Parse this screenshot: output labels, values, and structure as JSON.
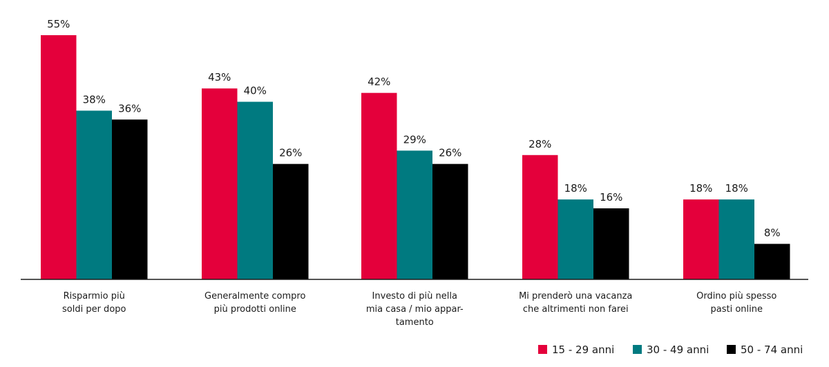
{
  "chart_data": {
    "type": "bar",
    "categories": [
      [
        "Risparmio più",
        "soldi per dopo"
      ],
      [
        "Generalmente compro",
        "più prodotti online"
      ],
      [
        "Investo di più nella",
        "mia casa / mio appar-",
        "tamento"
      ],
      [
        "Mi prenderò una vacanza",
        "che altrimenti non farei"
      ],
      [
        "Ordino più spesso",
        "pasti online"
      ]
    ],
    "series": [
      {
        "name": "15 - 29 anni",
        "color": "#e4003b",
        "values": [
          55,
          43,
          42,
          28,
          18
        ]
      },
      {
        "name": "30 - 49 anni",
        "color": "#007a80",
        "values": [
          38,
          40,
          29,
          18,
          18
        ]
      },
      {
        "name": "50 - 74 anni",
        "color": "#000000",
        "values": [
          36,
          26,
          26,
          16,
          8
        ]
      }
    ],
    "value_suffix": "%",
    "ylim": [
      0,
      55
    ],
    "grid": false,
    "legend_position": "bottom-right"
  }
}
